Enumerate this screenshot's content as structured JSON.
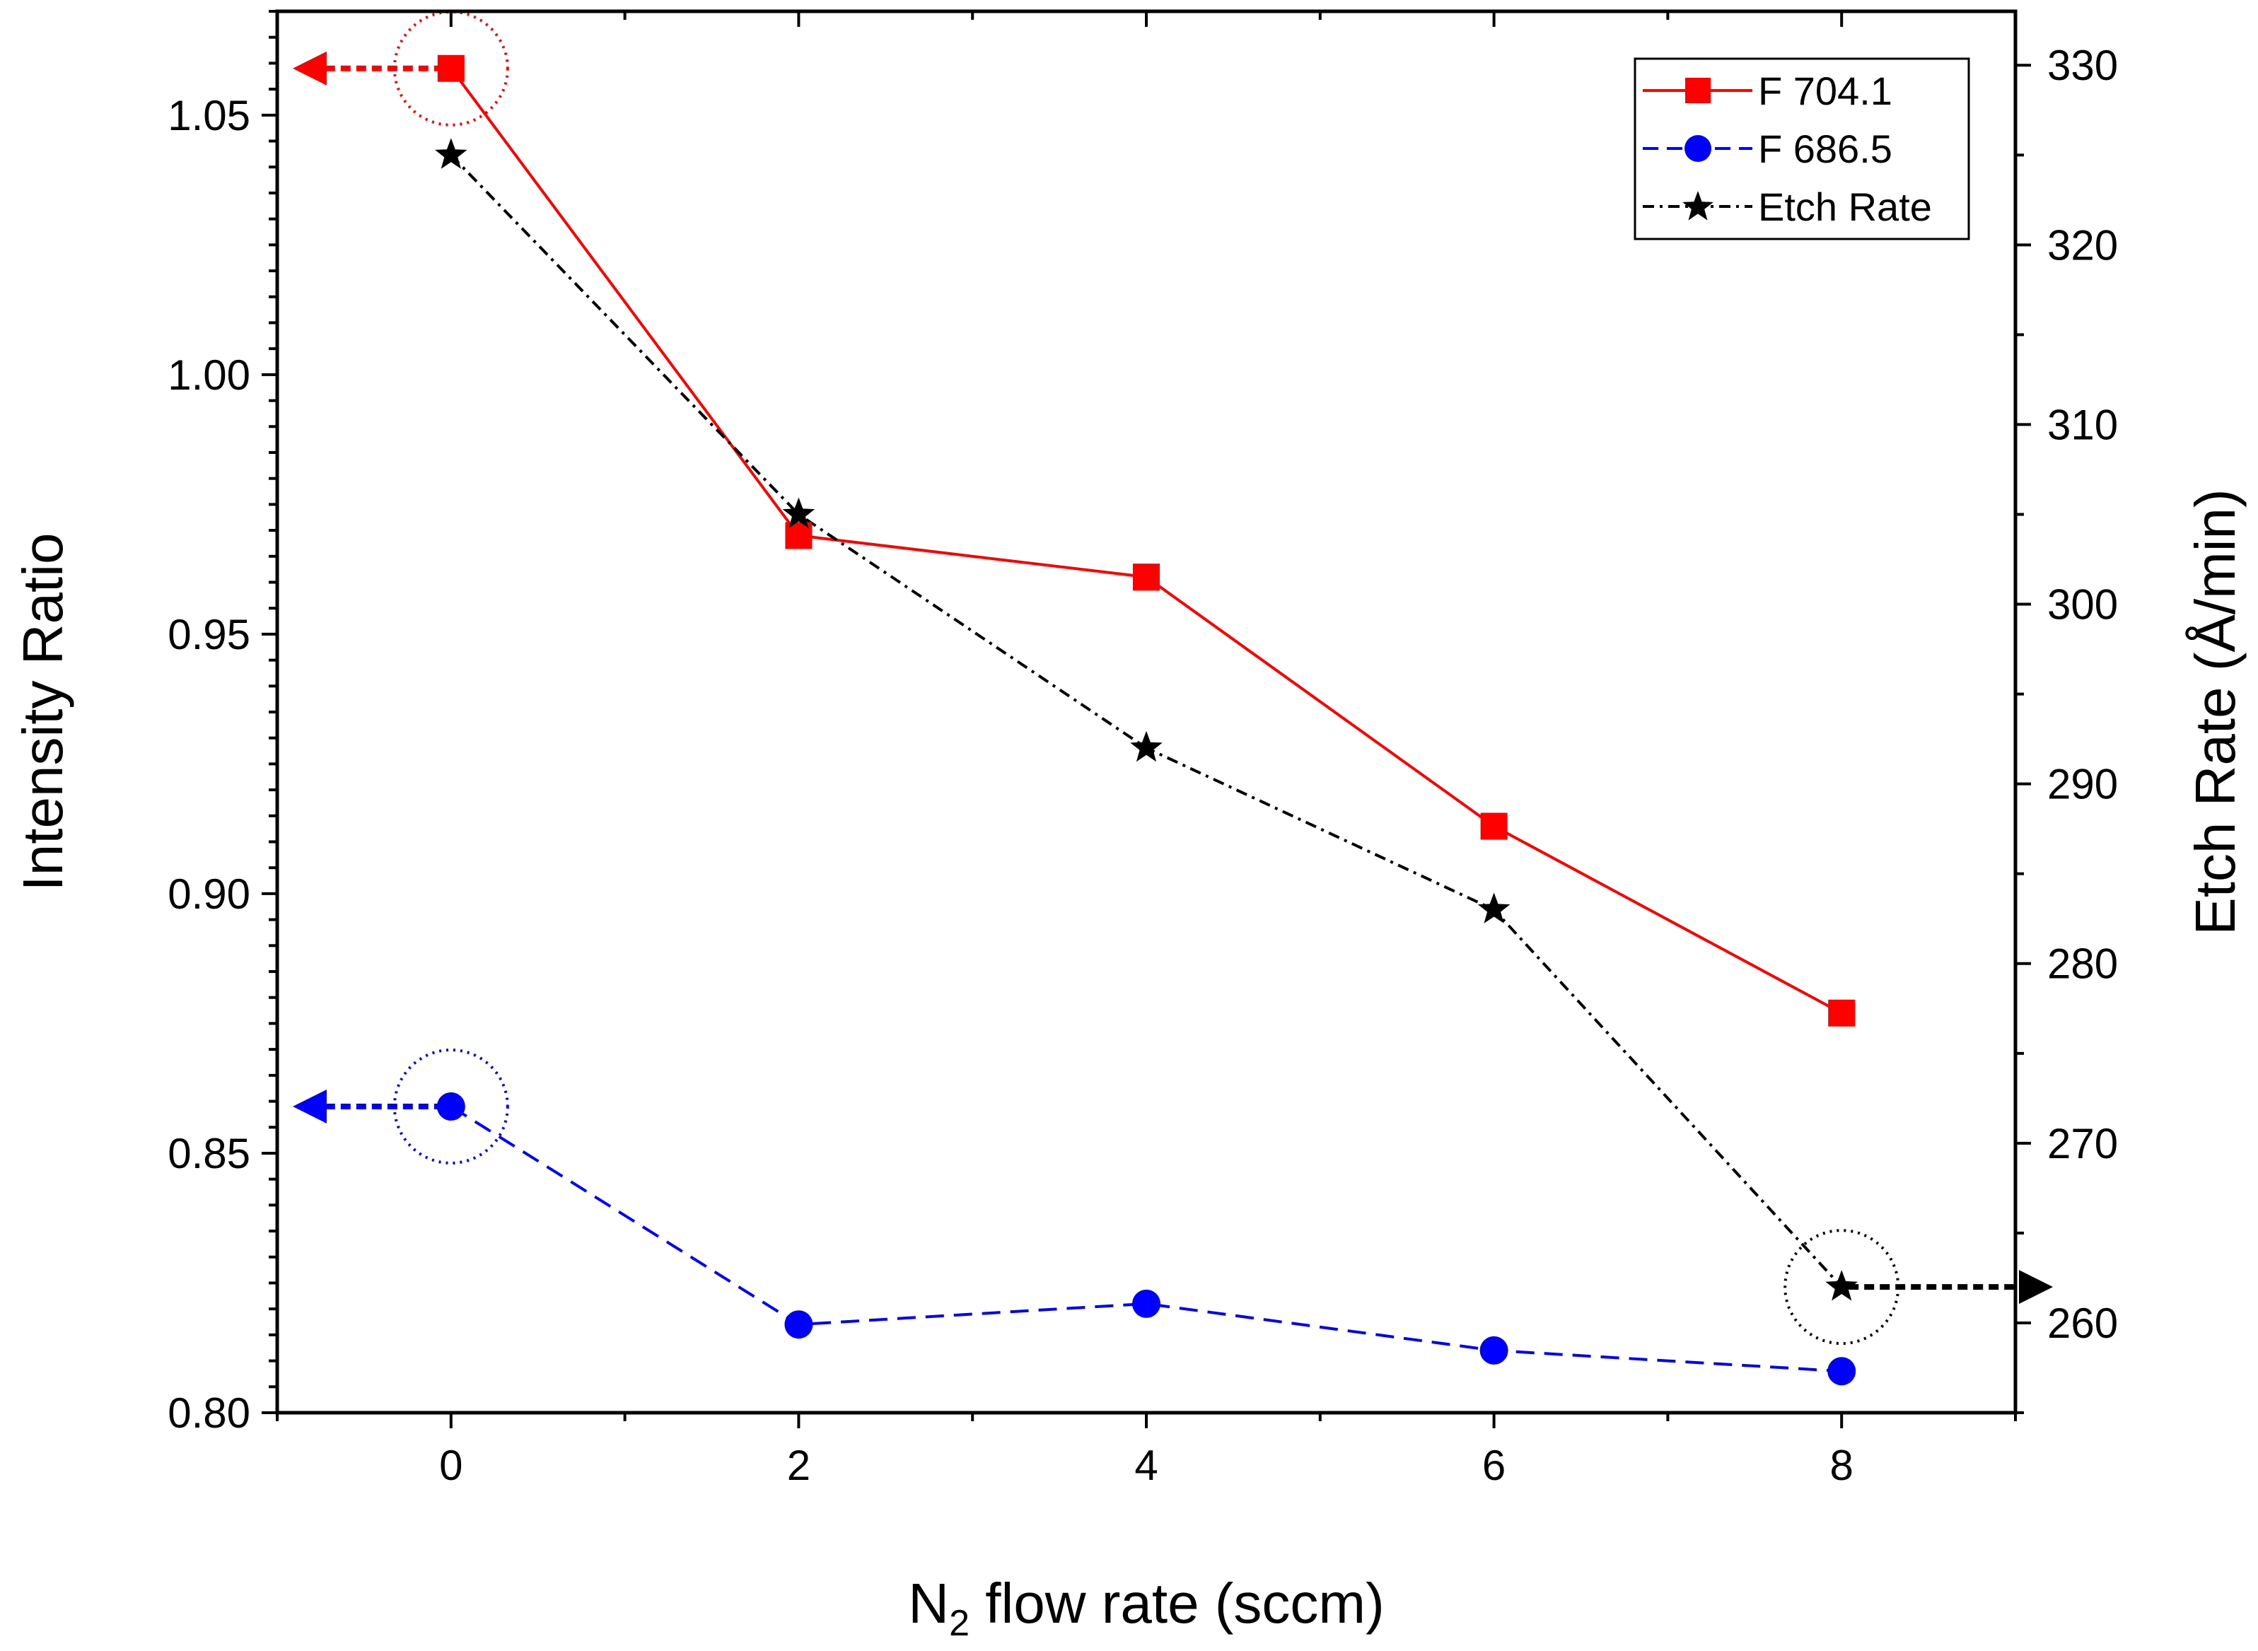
{
  "chart_data": {
    "type": "line",
    "x": [
      0,
      2,
      4,
      6,
      8
    ],
    "xlim": [
      -1,
      9
    ],
    "xticks": [
      0,
      2,
      4,
      6,
      8
    ],
    "xlabel": {
      "main": "N",
      "sub": "2",
      "rest": " flow rate (sccm)"
    },
    "ylabel_left": "Intensity Ratio",
    "ylim_left": [
      0.8,
      1.07
    ],
    "yticks_left": [
      "0.80",
      "0.85",
      "0.90",
      "0.95",
      "1.00",
      "1.05"
    ],
    "ylabel_right": "Etch Rate (Å/min)",
    "ylim_right": [
      255,
      333
    ],
    "yticks_right": [
      "260",
      "270",
      "280",
      "290",
      "300",
      "310",
      "320",
      "330"
    ],
    "series": [
      {
        "name": "F 704.1",
        "axis": "left",
        "color": "#ff0000",
        "marker": "square",
        "line": "solid",
        "values": [
          1.059,
          0.969,
          0.961,
          0.913,
          0.877
        ]
      },
      {
        "name": "F 686.5",
        "axis": "left",
        "color": "#0000ff",
        "marker": "circle",
        "line": "dashed",
        "values": [
          0.859,
          0.817,
          0.821,
          0.812,
          0.808
        ]
      },
      {
        "name": "Etch Rate",
        "axis": "right",
        "color": "#000000",
        "marker": "star",
        "line": "dashdot",
        "values": [
          325,
          305,
          292,
          283,
          262
        ]
      }
    ],
    "annotations": [
      {
        "series": "F 704.1",
        "point_index": 0,
        "arrow": "left",
        "color": "#ff0000"
      },
      {
        "series": "F 686.5",
        "point_index": 0,
        "arrow": "left",
        "color": "#0000ff"
      },
      {
        "series": "Etch Rate",
        "point_index": 4,
        "arrow": "right",
        "color": "#000000"
      }
    ],
    "legend": "top-right"
  }
}
